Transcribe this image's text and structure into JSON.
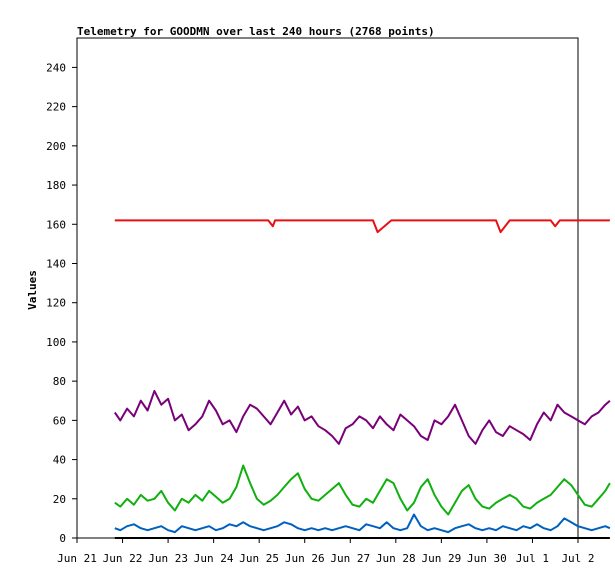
{
  "chart_data": {
    "type": "line",
    "title": "Telemetry for GOODMN over last 240 hours (2768 points)",
    "ylabel": "Values",
    "xlabel": "",
    "ylim": [
      0,
      255
    ],
    "xlim": [
      "Jun 21",
      "Jul 2"
    ],
    "yticks": [
      0,
      20,
      40,
      60,
      80,
      100,
      120,
      140,
      160,
      180,
      200,
      220,
      240
    ],
    "xticks": [
      "Jun 21",
      "Jun 22",
      "Jun 23",
      "Jun 24",
      "Jun 25",
      "Jun 26",
      "Jun 27",
      "Jun 28",
      "Jun 29",
      "Jun 30",
      "Jul 1",
      "Jul 2"
    ],
    "grid": false,
    "series": [
      {
        "color": "#e81010",
        "x": [
          0.83,
          1.0,
          1.2,
          1.8,
          2.0,
          4.2,
          4.3,
          4.35,
          6.5,
          6.6,
          6.9,
          7.2,
          7.5,
          7.9,
          8.1,
          8.4,
          9.2,
          9.3,
          9.5,
          10.4,
          10.5,
          10.6,
          11.7,
          11.7
        ],
        "y": [
          162,
          162,
          162,
          162,
          162,
          162,
          159,
          162,
          162,
          156,
          162,
          162,
          162,
          162,
          162,
          162,
          162,
          156,
          162,
          162,
          159,
          162,
          162,
          162
        ]
      },
      {
        "color": "#7a007a",
        "x": [
          0.83,
          0.95,
          1.1,
          1.25,
          1.4,
          1.55,
          1.7,
          1.85,
          2.0,
          2.15,
          2.3,
          2.45,
          2.6,
          2.75,
          2.9,
          3.05,
          3.2,
          3.35,
          3.5,
          3.65,
          3.8,
          3.95,
          4.1,
          4.25,
          4.4,
          4.55,
          4.7,
          4.85,
          5.0,
          5.15,
          5.3,
          5.45,
          5.6,
          5.75,
          5.9,
          6.05,
          6.2,
          6.35,
          6.5,
          6.65,
          6.8,
          6.95,
          7.1,
          7.25,
          7.4,
          7.55,
          7.7,
          7.85,
          8.0,
          8.15,
          8.3,
          8.45,
          8.6,
          8.75,
          8.9,
          9.05,
          9.2,
          9.35,
          9.5,
          9.65,
          9.8,
          9.95,
          10.1,
          10.25,
          10.4,
          10.55,
          10.7,
          10.85,
          11.0,
          11.15,
          11.3,
          11.45,
          11.6,
          11.7
        ],
        "y": [
          64,
          60,
          66,
          62,
          70,
          65,
          75,
          68,
          71,
          60,
          63,
          55,
          58,
          62,
          70,
          65,
          58,
          60,
          54,
          62,
          68,
          66,
          62,
          58,
          64,
          70,
          63,
          67,
          60,
          62,
          57,
          55,
          52,
          48,
          56,
          58,
          62,
          60,
          56,
          62,
          58,
          55,
          63,
          60,
          57,
          52,
          50,
          60,
          58,
          62,
          68,
          60,
          52,
          48,
          55,
          60,
          54,
          52,
          57,
          55,
          53,
          50,
          58,
          64,
          60,
          68,
          64,
          62,
          60,
          58,
          62,
          64,
          68,
          70
        ],
        "label": ""
      },
      {
        "color": "#10b010",
        "x": [
          0.83,
          0.95,
          1.1,
          1.25,
          1.4,
          1.55,
          1.7,
          1.85,
          2.0,
          2.15,
          2.3,
          2.45,
          2.6,
          2.75,
          2.9,
          3.05,
          3.2,
          3.35,
          3.5,
          3.65,
          3.8,
          3.95,
          4.1,
          4.25,
          4.4,
          4.55,
          4.7,
          4.85,
          5.0,
          5.15,
          5.3,
          5.45,
          5.6,
          5.75,
          5.9,
          6.05,
          6.2,
          6.35,
          6.5,
          6.65,
          6.8,
          6.95,
          7.1,
          7.25,
          7.4,
          7.55,
          7.7,
          7.85,
          8.0,
          8.15,
          8.3,
          8.45,
          8.6,
          8.75,
          8.9,
          9.05,
          9.2,
          9.35,
          9.5,
          9.65,
          9.8,
          9.95,
          10.1,
          10.25,
          10.4,
          10.55,
          10.7,
          10.85,
          11.0,
          11.15,
          11.3,
          11.45,
          11.6,
          11.7
        ],
        "y": [
          18,
          16,
          20,
          17,
          22,
          19,
          20,
          24,
          18,
          14,
          20,
          18,
          22,
          19,
          24,
          21,
          18,
          20,
          26,
          37,
          28,
          20,
          17,
          19,
          22,
          26,
          30,
          33,
          25,
          20,
          19,
          22,
          25,
          28,
          22,
          17,
          16,
          20,
          18,
          24,
          30,
          28,
          20,
          14,
          18,
          26,
          30,
          22,
          16,
          12,
          18,
          24,
          27,
          20,
          16,
          15,
          18,
          20,
          22,
          20,
          16,
          15,
          18,
          20,
          22,
          26,
          30,
          27,
          22,
          17,
          16,
          20,
          24,
          28
        ],
        "label": ""
      },
      {
        "color": "#0060c0",
        "x": [
          0.83,
          0.95,
          1.1,
          1.25,
          1.4,
          1.55,
          1.7,
          1.85,
          2.0,
          2.15,
          2.3,
          2.45,
          2.6,
          2.75,
          2.9,
          3.05,
          3.2,
          3.35,
          3.5,
          3.65,
          3.8,
          3.95,
          4.1,
          4.25,
          4.4,
          4.55,
          4.7,
          4.85,
          5.0,
          5.15,
          5.3,
          5.45,
          5.6,
          5.75,
          5.9,
          6.05,
          6.2,
          6.35,
          6.5,
          6.65,
          6.8,
          6.95,
          7.1,
          7.25,
          7.4,
          7.55,
          7.7,
          7.85,
          8.0,
          8.15,
          8.3,
          8.45,
          8.6,
          8.75,
          8.9,
          9.05,
          9.2,
          9.35,
          9.5,
          9.65,
          9.8,
          9.95,
          10.1,
          10.25,
          10.4,
          10.55,
          10.7,
          10.85,
          11.0,
          11.15,
          11.3,
          11.45,
          11.6,
          11.7
        ],
        "y": [
          5,
          4,
          6,
          7,
          5,
          4,
          5,
          6,
          4,
          3,
          6,
          5,
          4,
          5,
          6,
          4,
          5,
          7,
          6,
          8,
          6,
          5,
          4,
          5,
          6,
          8,
          7,
          5,
          4,
          5,
          4,
          5,
          4,
          5,
          6,
          5,
          4,
          7,
          6,
          5,
          8,
          5,
          4,
          5,
          12,
          6,
          4,
          5,
          4,
          3,
          5,
          6,
          7,
          5,
          4,
          5,
          4,
          6,
          5,
          4,
          6,
          5,
          7,
          5,
          4,
          6,
          10,
          8,
          6,
          5,
          4,
          5,
          6,
          5
        ],
        "label": ""
      },
      {
        "color": "#000000",
        "x": [
          0.83,
          11.7
        ],
        "y": [
          0,
          0
        ],
        "label": ""
      }
    ]
  }
}
